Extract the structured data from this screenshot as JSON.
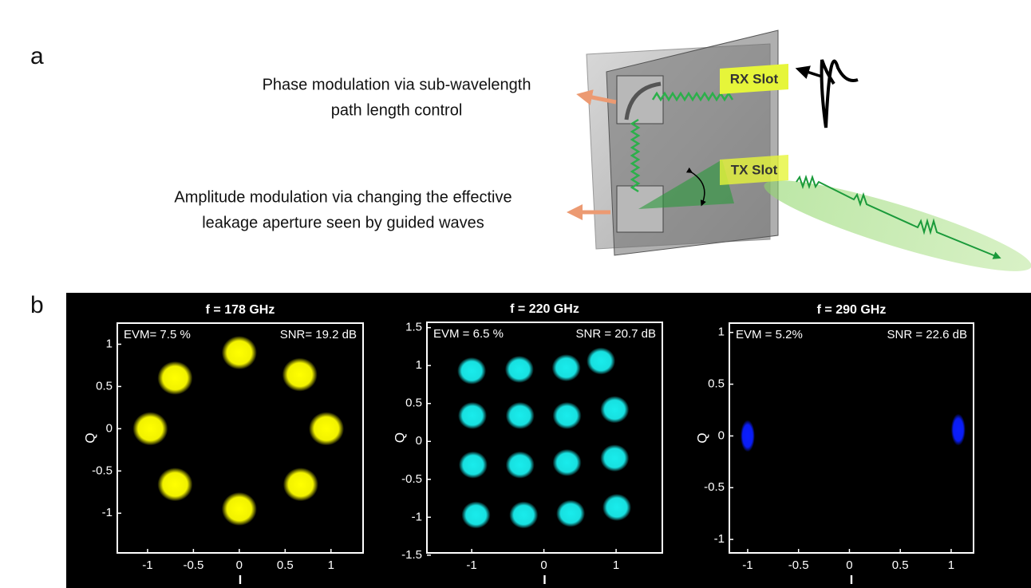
{
  "panel_labels": [
    "a",
    "b"
  ],
  "diagram": {
    "annotations": [
      [
        "Phase modulation via sub-wavelength",
        "path length control"
      ],
      [
        "Amplitude modulation via changing the effective",
        "leakage aperture seen by guided waves"
      ]
    ],
    "slots": [
      "RX Slot",
      "TX Slot"
    ]
  },
  "chart_data": [
    {
      "type": "scatter",
      "title": "f = 178 GHz",
      "annotations": [
        "EVM= 7.5 %",
        "SNR= 19.2 dB"
      ],
      "xlabel": "I",
      "ylabel": "Q",
      "color": "#ffff00",
      "x": [
        0,
        0.66,
        0.95,
        0.67,
        0,
        -0.7,
        -0.97,
        -0.7
      ],
      "values": [
        0.9,
        0.64,
        0,
        -0.66,
        -0.95,
        -0.66,
        0,
        0.6
      ],
      "xlim": [
        -1.33,
        1.35
      ],
      "ylim": [
        -1.47,
        1.25
      ],
      "xticks": [
        -1,
        -0.5,
        0,
        0.5,
        1
      ],
      "yticks": [
        -1,
        -0.5,
        0,
        0.5,
        1
      ]
    },
    {
      "type": "scatter",
      "title": "f = 220 GHz",
      "annotations": [
        "EVM = 6.5 %",
        "SNR = 20.7 dB"
      ],
      "xlabel": "I",
      "ylabel": "Q",
      "color": "#19ecec",
      "x": [
        -1.0,
        -0.34,
        0.31,
        0.79,
        -0.99,
        -0.33,
        0.32,
        0.98,
        -0.98,
        -0.33,
        0.32,
        0.98,
        -0.94,
        -0.28,
        0.37,
        1.01
      ],
      "values": [
        0.93,
        0.95,
        0.97,
        1.06,
        0.34,
        0.34,
        0.34,
        0.42,
        -0.31,
        -0.31,
        -0.28,
        -0.22,
        -0.97,
        -0.97,
        -0.95,
        -0.87
      ],
      "xlim": [
        -1.62,
        1.64
      ],
      "ylim": [
        -1.47,
        1.57
      ],
      "xticks": [
        -1,
        0,
        1
      ],
      "yticks": [
        -1.5,
        -1,
        -0.5,
        0,
        0.5,
        1,
        1.5
      ]
    },
    {
      "type": "scatter",
      "title": "f = 290 GHz",
      "annotations": [
        "EVM = 5.2%",
        "SNR = 22.6 dB"
      ],
      "xlabel": "I",
      "ylabel": "Q",
      "color": "#0a1eff",
      "x": [
        -1.0,
        1.07
      ],
      "values": [
        0,
        0.06
      ],
      "xlim": [
        -1.18,
        1.22
      ],
      "ylim": [
        -1.13,
        1.09
      ],
      "xticks": [
        -1,
        -0.5,
        0,
        0.5,
        1
      ],
      "yticks": [
        -1,
        -0.5,
        0,
        0.5,
        1
      ]
    }
  ]
}
